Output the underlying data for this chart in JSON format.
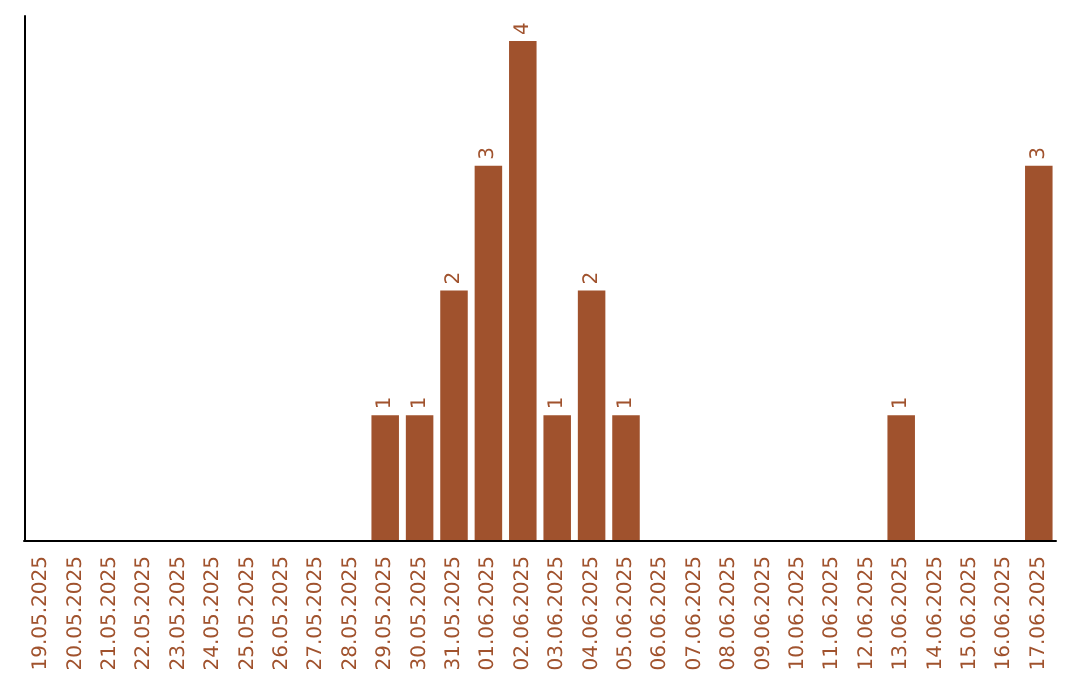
{
  "chart_data": {
    "type": "bar",
    "categories": [
      "19.05.2025",
      "20.05.2025",
      "21.05.2025",
      "22.05.2025",
      "23.05.2025",
      "24.05.2025",
      "25.05.2025",
      "26.05.2025",
      "27.05.2025",
      "28.05.2025",
      "29.05.2025",
      "30.05.2025",
      "31.05.2025",
      "01.06.2025",
      "02.06.2025",
      "03.06.2025",
      "04.06.2025",
      "05.06.2025",
      "06.06.2025",
      "07.06.2025",
      "08.06.2025",
      "09.06.2025",
      "10.06.2025",
      "11.06.2025",
      "12.06.2025",
      "13.06.2025",
      "14.06.2025",
      "15.06.2025",
      "16.06.2025",
      "17.06.2025"
    ],
    "values": [
      0,
      0,
      0,
      0,
      0,
      0,
      0,
      0,
      0,
      0,
      1,
      1,
      2,
      3,
      4,
      1,
      2,
      1,
      0,
      0,
      0,
      0,
      0,
      0,
      0,
      1,
      0,
      0,
      0,
      3
    ],
    "value_labels": [
      null,
      null,
      null,
      null,
      null,
      null,
      null,
      null,
      null,
      null,
      "1",
      "1",
      "2",
      "3",
      "4",
      "1",
      "2",
      "1",
      null,
      null,
      null,
      null,
      null,
      null,
      null,
      "1",
      null,
      null,
      null,
      "3"
    ],
    "color": "#a0522d",
    "grid": false
  }
}
